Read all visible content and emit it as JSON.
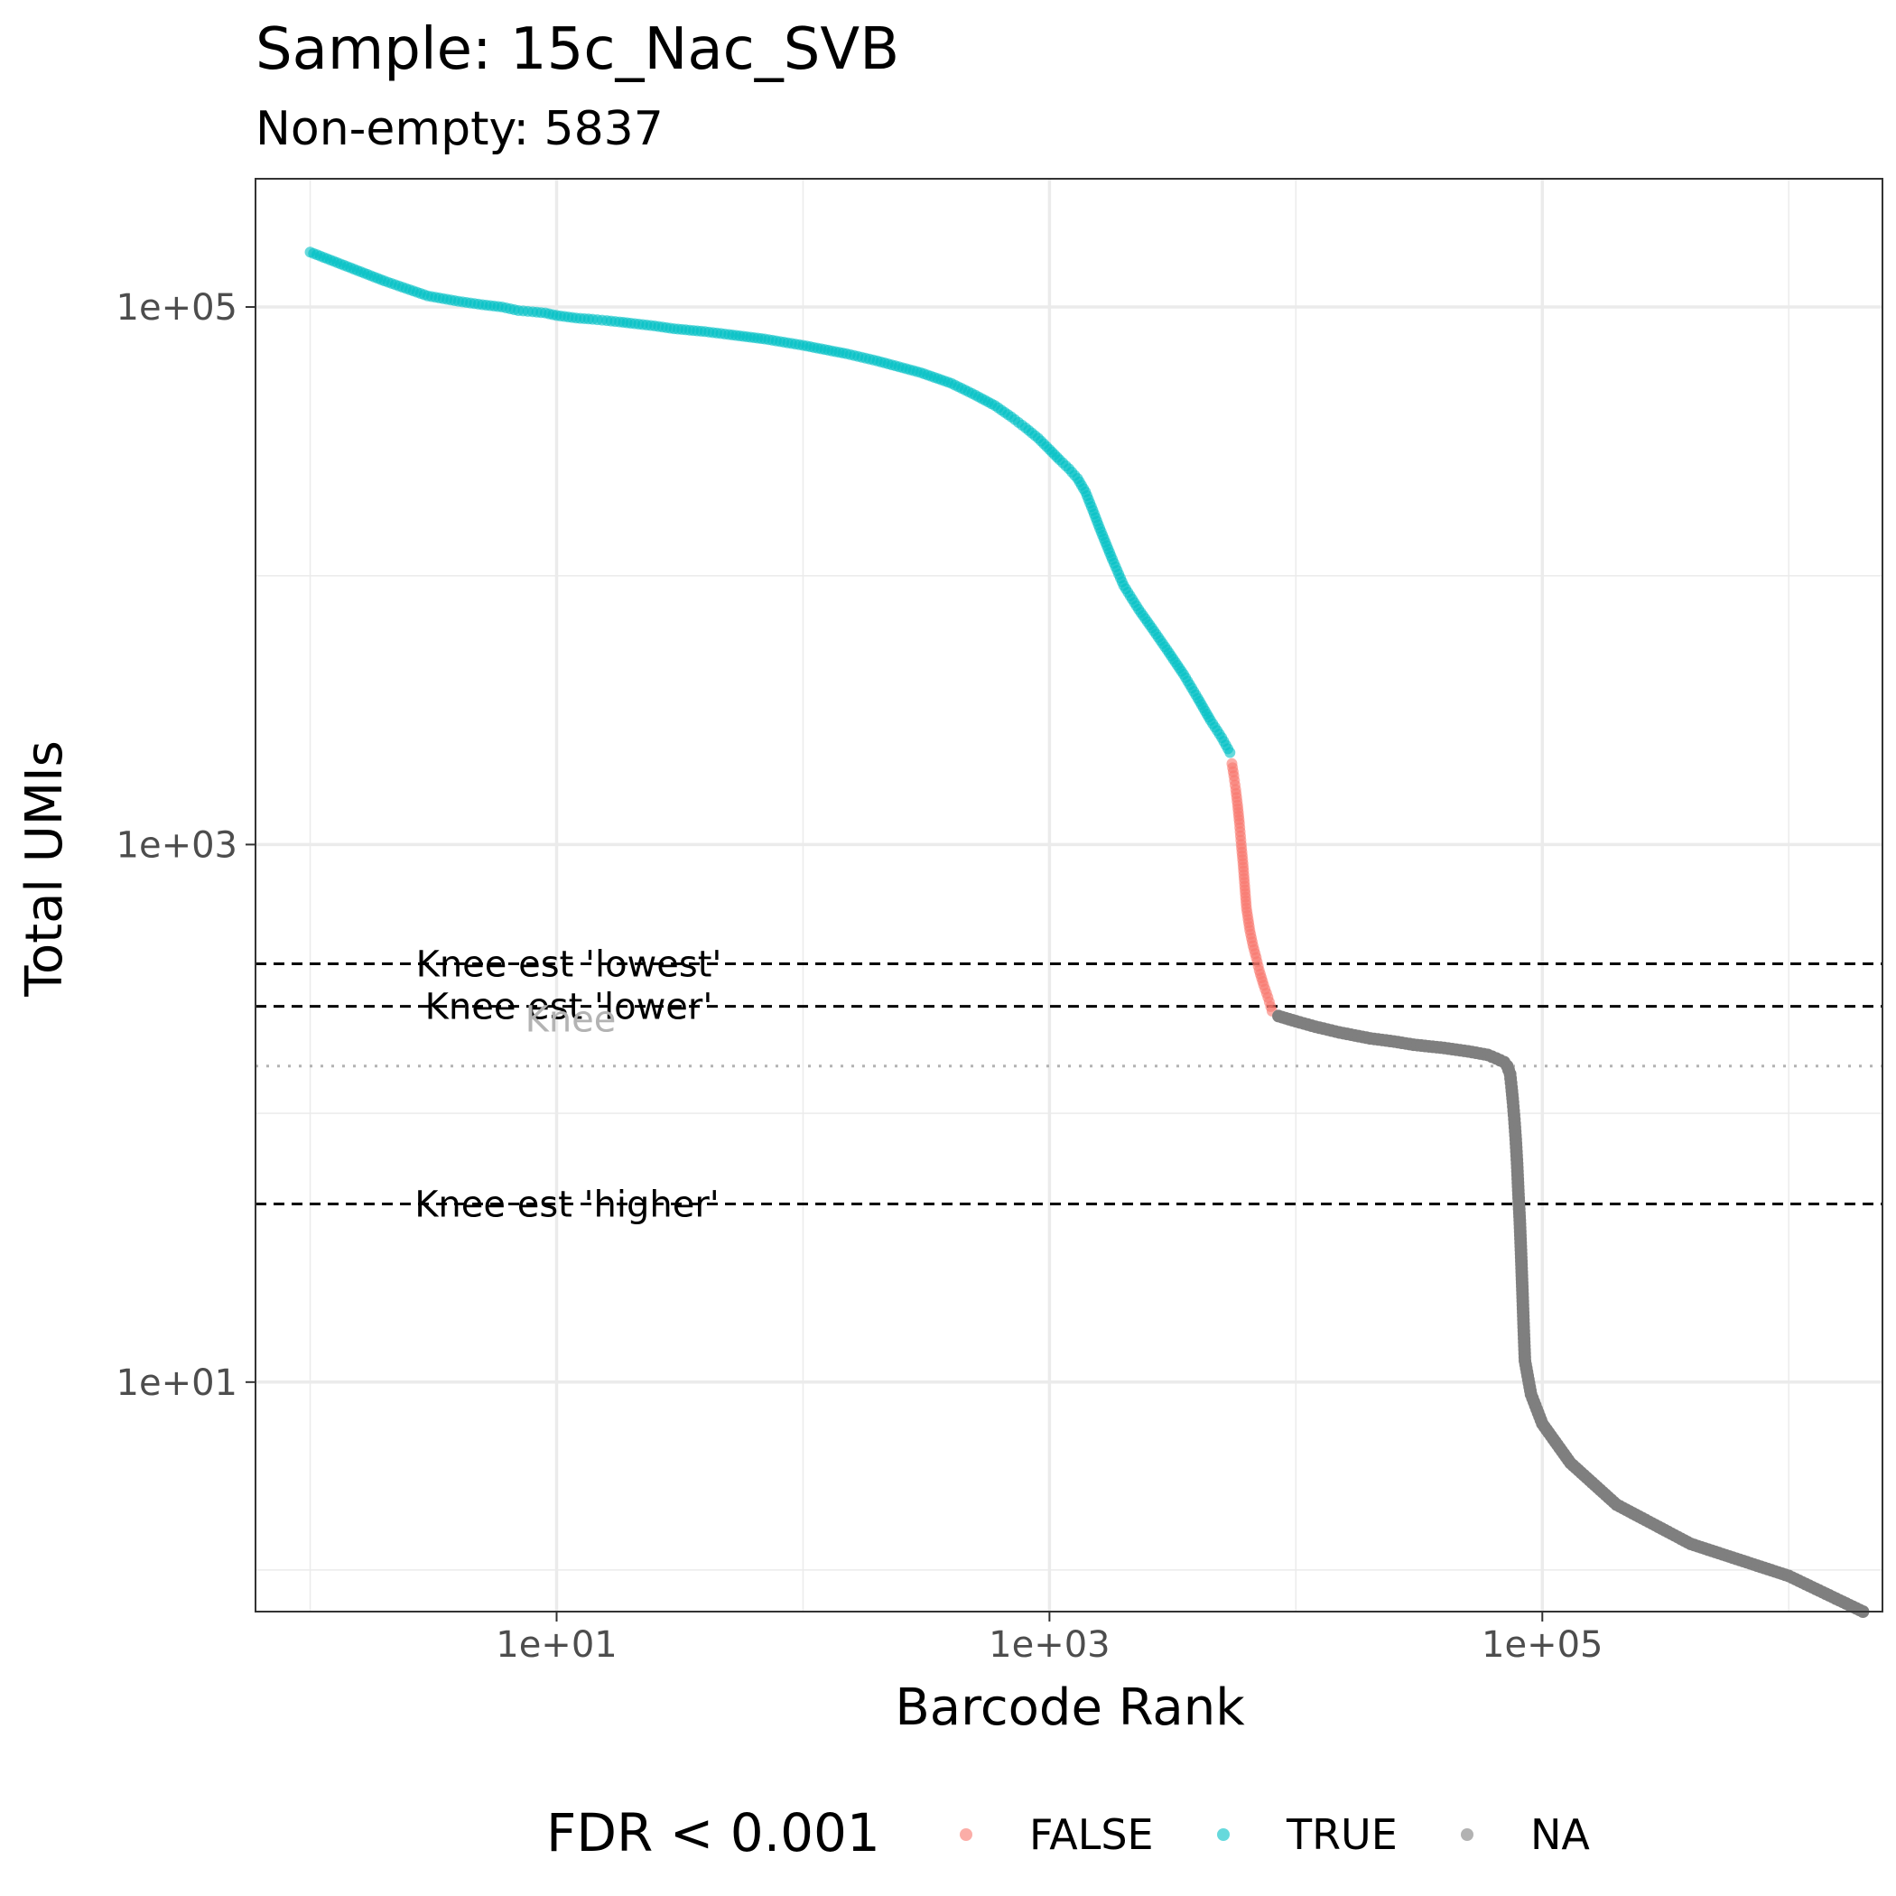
{
  "chart_data": {
    "type": "scatter",
    "title": "Sample: 15c_Nac_SVB",
    "subtitle": "Non-empty: 5837",
    "xlabel": "Barcode Rank",
    "ylabel": "Total UMIs",
    "x_scale": "log10",
    "y_scale": "log10",
    "xlim": [
      0.6,
      2400000
    ],
    "ylim": [
      1.4,
      300000
    ],
    "x_ticks": [
      {
        "value": 10,
        "label": "1e+01"
      },
      {
        "value": 1000,
        "label": "1e+03"
      },
      {
        "value": 100000,
        "label": "1e+05"
      }
    ],
    "y_ticks": [
      {
        "value": 10,
        "label": "1e+01"
      },
      {
        "value": 1000,
        "label": "1e+03"
      },
      {
        "value": 100000,
        "label": "1e+05"
      }
    ],
    "x_minor_gridlines": [
      1,
      100,
      10000,
      1000000
    ],
    "y_minor_gridlines": [
      2,
      100,
      10000
    ],
    "grid": true,
    "legend": {
      "title": "FDR < 0.001",
      "position": "bottom",
      "entries": [
        {
          "label": "FALSE",
          "color": "#F8766D"
        },
        {
          "label": "TRUE",
          "color": "#00BFC4"
        },
        {
          "label": "NA",
          "color": "#7F7F7F"
        }
      ]
    },
    "reference_lines": [
      {
        "y": 360,
        "label": "Knee est 'lowest'",
        "style": "dashed",
        "color": "#000000"
      },
      {
        "y": 250,
        "label": "Knee est 'lower'",
        "style": "dashed",
        "color": "#000000"
      },
      {
        "y": 150,
        "label": "Knee",
        "style": "dotted",
        "color": "#b3b3b3"
      },
      {
        "y": 46,
        "label": "Knee est 'higher'",
        "style": "dashed",
        "color": "#000000"
      }
    ],
    "series": [
      {
        "name": "TRUE",
        "color": "#00BFC4",
        "x": [
          1,
          2,
          3,
          4,
          5,
          6,
          7,
          8,
          9,
          10,
          12,
          14,
          16,
          18,
          20,
          25,
          30,
          40,
          50,
          70,
          100,
          150,
          200,
          300,
          400,
          500,
          600,
          700,
          800,
          900,
          1000,
          1100,
          1200,
          1300,
          1400,
          1500,
          1600,
          1800,
          2000,
          2300,
          2600,
          3000,
          3500,
          4000,
          4500,
          5000,
          5400
        ],
        "y": [
          160000,
          125000,
          110000,
          105000,
          102000,
          100000,
          97000,
          96000,
          95000,
          93000,
          91000,
          90000,
          89000,
          88000,
          87000,
          85000,
          83000,
          81000,
          79000,
          76000,
          72000,
          67000,
          63000,
          57000,
          52000,
          47000,
          43000,
          39000,
          35500,
          32500,
          29500,
          27000,
          25000,
          23000,
          20500,
          17500,
          15000,
          11500,
          9200,
          7500,
          6400,
          5300,
          4300,
          3500,
          2900,
          2500,
          2200
        ]
      },
      {
        "name": "FALSE",
        "color": "#F8766D",
        "x": [
          5500,
          5600,
          5700,
          5800,
          5900,
          6000,
          6100,
          6200,
          6300,
          6500,
          6700,
          6900,
          7100,
          7400,
          7700,
          8000
        ],
        "y": [
          2000,
          1800,
          1600,
          1400,
          1200,
          1000,
          850,
          700,
          580,
          480,
          420,
          380,
          340,
          300,
          270,
          240
        ]
      },
      {
        "name": "NA",
        "color": "#7F7F7F",
        "x": [
          8500,
          10000,
          12000,
          15000,
          20000,
          25000,
          30000,
          40000,
          50000,
          60000,
          65000,
          70000,
          72000,
          74000,
          75000,
          76000,
          77000,
          78000,
          79000,
          80000,
          81000,
          82000,
          83000,
          84000,
          85000,
          90000,
          100000,
          130000,
          200000,
          400000,
          1000000,
          2000000
        ],
        "y": [
          230,
          220,
          210,
          200,
          190,
          185,
          180,
          175,
          170,
          165,
          160,
          155,
          150,
          140,
          125,
          110,
          95,
          80,
          65,
          50,
          40,
          30,
          22,
          16,
          12,
          9,
          7,
          5,
          3.5,
          2.5,
          1.9,
          1.4
        ]
      }
    ]
  }
}
